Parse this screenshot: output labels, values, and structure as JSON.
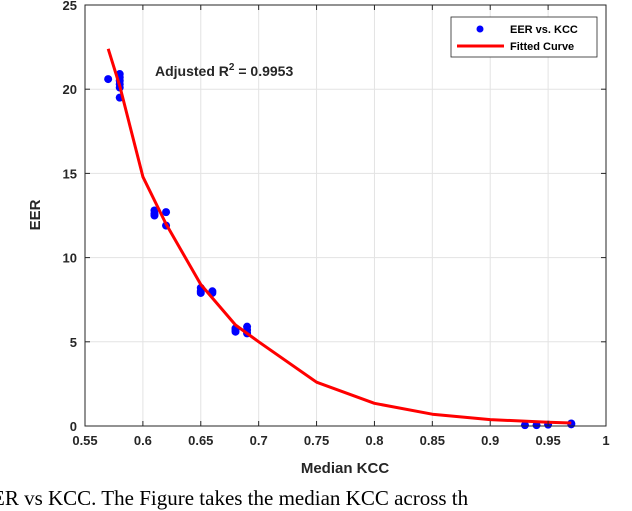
{
  "chart_data": {
    "type": "scatter",
    "xlabel": "Median KCC",
    "ylabel": "EER",
    "xlim": [
      0.55,
      1
    ],
    "ylim": [
      0,
      25
    ],
    "xticks": [
      "0.55",
      "0.6",
      "0.65",
      "0.7",
      "0.75",
      "0.8",
      "0.85",
      "0.9",
      "0.95",
      "1"
    ],
    "yticks": [
      "0",
      "5",
      "10",
      "15",
      "20",
      "25"
    ],
    "grid": true,
    "legend_placement": "top-right",
    "annotation": {
      "prefix": "Adjusted R",
      "sup": "2",
      "suffix": " = 0.9953"
    },
    "series": [
      {
        "name": "EER vs. KCC",
        "kind": "scatter",
        "color": "#0000ff",
        "x": [
          0.57,
          0.58,
          0.58,
          0.58,
          0.58,
          0.58,
          0.58,
          0.61,
          0.61,
          0.61,
          0.62,
          0.62,
          0.65,
          0.65,
          0.65,
          0.66,
          0.66,
          0.68,
          0.68,
          0.68,
          0.69,
          0.69,
          0.69,
          0.93,
          0.94,
          0.95,
          0.97,
          0.97
        ],
        "y": [
          20.6,
          20.9,
          20.7,
          20.5,
          20.3,
          20.1,
          19.5,
          12.8,
          12.6,
          12.5,
          12.7,
          11.9,
          8.2,
          8.0,
          7.9,
          8.0,
          7.9,
          5.8,
          5.7,
          5.6,
          5.9,
          5.7,
          5.5,
          0.05,
          0.05,
          0.08,
          0.15,
          0.1
        ]
      },
      {
        "name": "Fitted Curve",
        "kind": "line",
        "color": "#ff0000",
        "x": [
          0.57,
          0.58,
          0.6,
          0.62,
          0.65,
          0.68,
          0.7,
          0.75,
          0.8,
          0.85,
          0.9,
          0.95,
          0.97
        ],
        "y": [
          22.4,
          20.2,
          14.8,
          12.0,
          8.4,
          6.0,
          5.0,
          2.6,
          1.35,
          0.7,
          0.38,
          0.22,
          0.18
        ]
      }
    ]
  },
  "caption": "ER vs KCC. The Figure takes the median KCC across th"
}
